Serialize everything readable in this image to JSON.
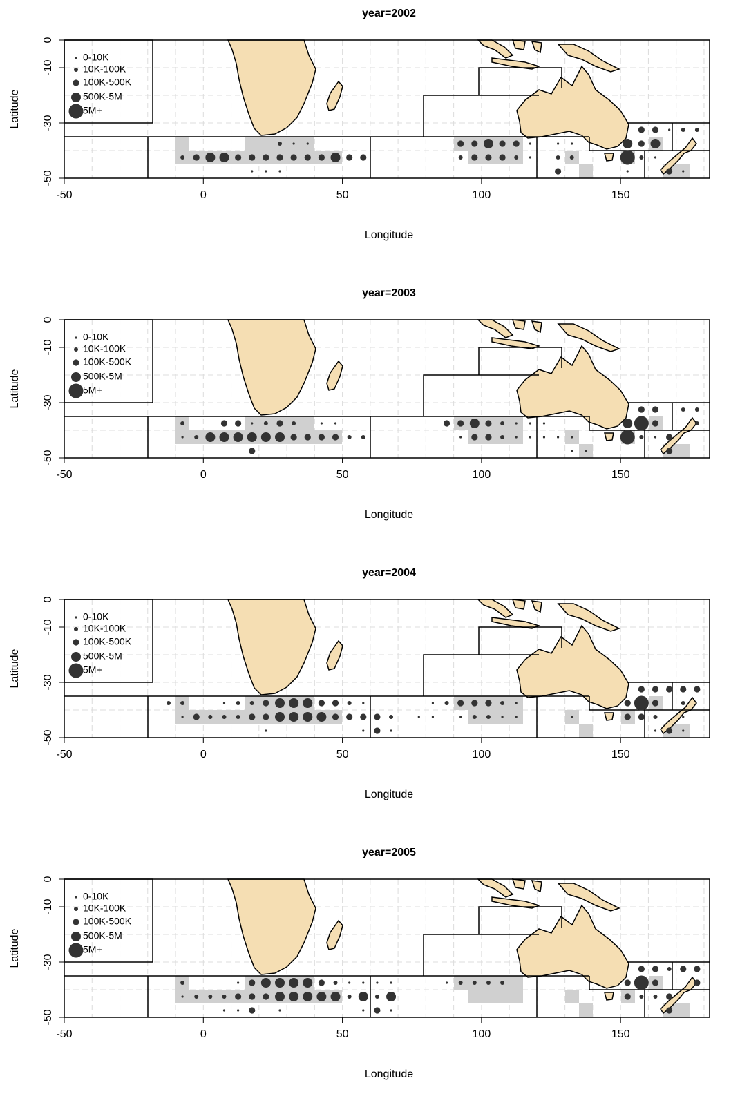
{
  "chart_data": [
    {
      "type": "scatter",
      "title": "year=2002",
      "x_label": "Longitude",
      "y_label": "Latitude",
      "xlim": [
        -50,
        182
      ],
      "ylim": [
        -50,
        0
      ],
      "xticks": [
        -50,
        0,
        50,
        100,
        150
      ],
      "yticks": [
        0,
        -10,
        -30,
        -50
      ],
      "x_gridlines": [
        -40,
        -30,
        -20,
        -10,
        0,
        10,
        20,
        30,
        40,
        50,
        60,
        70,
        80,
        90,
        100,
        110,
        120,
        130,
        140,
        150,
        160,
        170,
        180
      ],
      "y_gridlines": [
        -10,
        -20,
        -30,
        -40
      ],
      "grid": true,
      "legend": "top-left",
      "series": [
        {
          "name": "0-10K",
          "color": "#333333",
          "x": [
            167.5,
            32.5,
            37.5,
            117.5,
            127.5,
            132.5,
            117.5,
            162.5,
            17.5,
            22.5,
            27.5,
            152.5,
            172.5
          ],
          "values": [
            -32.5,
            -37.5,
            -37.5,
            -37.5,
            -37.5,
            -37.5,
            -42.5,
            -42.5,
            -47.5,
            -47.5,
            -47.5,
            -47.5,
            -47.5
          ]
        },
        {
          "name": "10K-100K",
          "color": "#333333",
          "x": [
            172.5,
            177.5,
            27.5,
            -7.5,
            92.5,
            112.5,
            127.5,
            132.5,
            157.5
          ],
          "values": [
            -32.5,
            -32.5,
            -37.5,
            -42.5,
            -42.5,
            -42.5,
            -42.5,
            -42.5,
            -42.5
          ]
        },
        {
          "name": "100K-500K",
          "color": "#333333",
          "x": [
            157.5,
            162.5,
            92.5,
            97.5,
            107.5,
            112.5,
            157.5,
            -2.5,
            12.5,
            17.5,
            22.5,
            27.5,
            32.5,
            37.5,
            42.5,
            52.5,
            57.5,
            97.5,
            102.5,
            107.5,
            127.5,
            167.5
          ],
          "values": [
            -32.5,
            -32.5,
            -37.5,
            -37.5,
            -37.5,
            -37.5,
            -37.5,
            -42.5,
            -42.5,
            -42.5,
            -42.5,
            -42.5,
            -42.5,
            -42.5,
            -42.5,
            -42.5,
            -42.5,
            -42.5,
            -42.5,
            -42.5,
            -47.5,
            -47.5
          ]
        },
        {
          "name": "500K-5M",
          "color": "#333333",
          "x": [
            102.5,
            152.5,
            162.5,
            2.5,
            7.5,
            47.5
          ],
          "values": [
            -37.5,
            -37.5,
            -37.5,
            -42.5,
            -42.5,
            -42.5
          ]
        },
        {
          "name": "5M+",
          "color": "#333333",
          "x": [
            152.5
          ],
          "values": [
            -42.5
          ]
        }
      ]
    },
    {
      "type": "scatter",
      "title": "year=2003",
      "x_label": "Longitude",
      "y_label": "Latitude",
      "xlim": [
        -50,
        182
      ],
      "ylim": [
        -50,
        0
      ],
      "xticks": [
        -50,
        0,
        50,
        100,
        150
      ],
      "yticks": [
        0,
        -10,
        -30,
        -50
      ],
      "x_gridlines": [
        -40,
        -30,
        -20,
        -10,
        0,
        10,
        20,
        30,
        40,
        50,
        60,
        70,
        80,
        90,
        100,
        110,
        120,
        130,
        140,
        150,
        160,
        170,
        180
      ],
      "y_gridlines": [
        -10,
        -20,
        -30,
        -40
      ],
      "grid": true,
      "legend": "top-left",
      "series": [
        {
          "name": "0-10K",
          "color": "#333333",
          "x": [
            17.5,
            42.5,
            47.5,
            112.5,
            117.5,
            122.5,
            -7.5,
            92.5,
            112.5,
            117.5,
            122.5,
            127.5,
            132.5,
            162.5,
            132.5,
            137.5
          ],
          "values": [
            -37.5,
            -37.5,
            -37.5,
            -37.5,
            -37.5,
            -37.5,
            -42.5,
            -42.5,
            -42.5,
            -42.5,
            -42.5,
            -42.5,
            -42.5,
            -42.5,
            -47.5,
            -47.5
          ]
        },
        {
          "name": "10K-100K",
          "color": "#333333",
          "x": [
            172.5,
            177.5,
            -7.5,
            22.5,
            32.5,
            107.5,
            177.5,
            -2.5,
            52.5,
            57.5,
            107.5,
            157.5
          ],
          "values": [
            -32.5,
            -32.5,
            -37.5,
            -37.5,
            -37.5,
            -37.5,
            -37.5,
            -42.5,
            -42.5,
            -42.5,
            -42.5,
            -42.5
          ]
        },
        {
          "name": "100K-500K",
          "color": "#333333",
          "x": [
            157.5,
            162.5,
            7.5,
            12.5,
            27.5,
            87.5,
            92.5,
            102.5,
            162.5,
            32.5,
            37.5,
            42.5,
            47.5,
            97.5,
            102.5,
            167.5,
            17.5,
            167.5
          ],
          "values": [
            -32.5,
            -32.5,
            -37.5,
            -37.5,
            -37.5,
            -37.5,
            -37.5,
            -37.5,
            -37.5,
            -42.5,
            -42.5,
            -42.5,
            -42.5,
            -42.5,
            -42.5,
            -42.5,
            -47.5,
            -47.5
          ]
        },
        {
          "name": "500K-5M",
          "color": "#333333",
          "x": [
            97.5,
            152.5,
            2.5,
            7.5,
            12.5,
            17.5,
            22.5,
            27.5
          ],
          "values": [
            -37.5,
            -37.5,
            -42.5,
            -42.5,
            -42.5,
            -42.5,
            -42.5,
            -42.5
          ]
        },
        {
          "name": "5M+",
          "color": "#333333",
          "x": [
            157.5,
            152.5
          ],
          "values": [
            -37.5,
            -42.5
          ]
        }
      ]
    },
    {
      "type": "scatter",
      "title": "year=2004",
      "x_label": "Longitude",
      "y_label": "Latitude",
      "xlim": [
        -50,
        182
      ],
      "ylim": [
        -50,
        0
      ],
      "xticks": [
        -50,
        0,
        50,
        100,
        150
      ],
      "yticks": [
        0,
        -10,
        -30,
        -50
      ],
      "x_gridlines": [
        -40,
        -30,
        -20,
        -10,
        0,
        10,
        20,
        30,
        40,
        50,
        60,
        70,
        80,
        90,
        100,
        110,
        120,
        130,
        140,
        150,
        160,
        170,
        180
      ],
      "y_gridlines": [
        -10,
        -20,
        -30,
        -40
      ],
      "grid": true,
      "legend": "top-left",
      "series": [
        {
          "name": "0-10K",
          "color": "#333333",
          "x": [
            7.5,
            57.5,
            82.5,
            112.5,
            -7.5,
            77.5,
            82.5,
            92.5,
            107.5,
            112.5,
            132.5,
            172.5,
            22.5,
            57.5,
            67.5,
            162.5,
            172.5
          ],
          "values": [
            -37.5,
            -37.5,
            -37.5,
            -37.5,
            -42.5,
            -42.5,
            -42.5,
            -42.5,
            -42.5,
            -42.5,
            -42.5,
            -42.5,
            -47.5,
            -47.5,
            -47.5,
            -47.5,
            -47.5
          ]
        },
        {
          "name": "10K-100K",
          "color": "#333333",
          "x": [
            -12.5,
            -7.5,
            12.5,
            17.5,
            52.5,
            87.5,
            107.5,
            172.5,
            2.5,
            7.5,
            12.5,
            67.5,
            97.5,
            102.5,
            162.5
          ],
          "values": [
            -37.5,
            -37.5,
            -37.5,
            -37.5,
            -37.5,
            -37.5,
            -37.5,
            -37.5,
            -42.5,
            -42.5,
            -42.5,
            -42.5,
            -42.5,
            -42.5,
            -42.5
          ]
        },
        {
          "name": "100K-500K",
          "color": "#333333",
          "x": [
            157.5,
            162.5,
            167.5,
            172.5,
            177.5,
            22.5,
            42.5,
            47.5,
            92.5,
            97.5,
            102.5,
            152.5,
            162.5,
            -2.5,
            17.5,
            22.5,
            47.5,
            52.5,
            57.5,
            62.5,
            152.5,
            157.5,
            62.5,
            167.5
          ],
          "values": [
            -32.5,
            -32.5,
            -32.5,
            -32.5,
            -32.5,
            -37.5,
            -37.5,
            -37.5,
            -37.5,
            -37.5,
            -37.5,
            -37.5,
            -37.5,
            -42.5,
            -42.5,
            -42.5,
            -42.5,
            -42.5,
            -42.5,
            -42.5,
            -42.5,
            -42.5,
            -47.5,
            -47.5
          ]
        },
        {
          "name": "500K-5M",
          "color": "#333333",
          "x": [
            27.5,
            32.5,
            37.5,
            27.5,
            32.5,
            37.5,
            42.5
          ],
          "values": [
            -37.5,
            -37.5,
            -37.5,
            -42.5,
            -42.5,
            -42.5,
            -42.5
          ]
        },
        {
          "name": "5M+",
          "color": "#333333",
          "x": [
            157.5
          ],
          "values": [
            -37.5
          ]
        }
      ]
    },
    {
      "type": "scatter",
      "title": "year=2005",
      "x_label": "Longitude",
      "y_label": "Latitude",
      "xlim": [
        -50,
        182
      ],
      "ylim": [
        -50,
        0
      ],
      "xticks": [
        -50,
        0,
        50,
        100,
        150
      ],
      "yticks": [
        0,
        -10,
        -30,
        -50
      ],
      "x_gridlines": [
        -40,
        -30,
        -20,
        -10,
        0,
        10,
        20,
        30,
        40,
        50,
        60,
        70,
        80,
        90,
        100,
        110,
        120,
        130,
        140,
        150,
        160,
        170,
        180
      ],
      "y_gridlines": [
        -10,
        -20,
        -30,
        -40
      ],
      "grid": true,
      "legend": "top-left",
      "series": [
        {
          "name": "0-10K",
          "color": "#333333",
          "x": [
            12.5,
            52.5,
            57.5,
            62.5,
            67.5,
            87.5,
            -7.5,
            7.5,
            12.5,
            27.5,
            57.5,
            67.5
          ],
          "values": [
            -37.5,
            -37.5,
            -37.5,
            -37.5,
            -37.5,
            -37.5,
            -42.5,
            -47.5,
            -47.5,
            -47.5,
            -47.5,
            -47.5
          ]
        },
        {
          "name": "10K-100K",
          "color": "#333333",
          "x": [
            167.5,
            -7.5,
            47.5,
            92.5,
            97.5,
            102.5,
            107.5,
            -2.5,
            2.5,
            7.5,
            52.5,
            62.5,
            157.5,
            162.5
          ],
          "values": [
            -32.5,
            -37.5,
            -37.5,
            -37.5,
            -37.5,
            -37.5,
            -37.5,
            -42.5,
            -42.5,
            -42.5,
            -42.5,
            -42.5,
            -42.5,
            -42.5
          ]
        },
        {
          "name": "100K-500K",
          "color": "#333333",
          "x": [
            157.5,
            162.5,
            172.5,
            177.5,
            17.5,
            42.5,
            152.5,
            162.5,
            177.5,
            12.5,
            17.5,
            22.5,
            152.5,
            167.5,
            17.5,
            62.5,
            167.5
          ],
          "values": [
            -32.5,
            -32.5,
            -32.5,
            -32.5,
            -37.5,
            -37.5,
            -37.5,
            -37.5,
            -37.5,
            -42.5,
            -42.5,
            -42.5,
            -42.5,
            -42.5,
            -47.5,
            -47.5,
            -47.5
          ]
        },
        {
          "name": "500K-5M",
          "color": "#333333",
          "x": [
            22.5,
            27.5,
            32.5,
            37.5,
            27.5,
            32.5,
            37.5,
            42.5,
            47.5,
            57.5,
            67.5
          ],
          "values": [
            -37.5,
            -37.5,
            -37.5,
            -37.5,
            -42.5,
            -42.5,
            -42.5,
            -42.5,
            -42.5,
            -42.5,
            -42.5
          ]
        },
        {
          "name": "5M+",
          "color": "#333333",
          "x": [
            157.5
          ],
          "values": [
            -37.5
          ]
        }
      ]
    }
  ]
}
